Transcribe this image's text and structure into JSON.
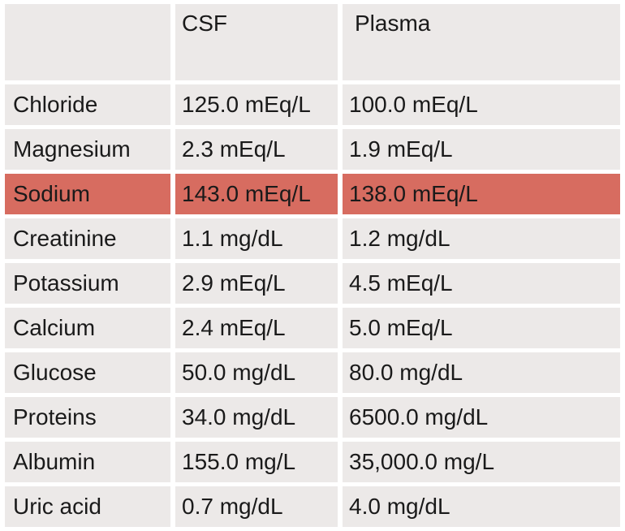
{
  "colors": {
    "cell_bg": "#ece9e8",
    "highlight_bg": "#d76c60",
    "gap_bg": "#ffffff",
    "text": "#1a1a1a"
  },
  "table": {
    "header": {
      "label": "",
      "csf": "CSF",
      "plasma": "Plasma"
    },
    "rows": [
      {
        "name": "Chloride",
        "csf": "125.0 mEq/L",
        "plasma": "100.0 mEq/L",
        "highlight": false
      },
      {
        "name": "Magnesium",
        "csf": "2.3 mEq/L",
        "plasma": "1.9 mEq/L",
        "highlight": false
      },
      {
        "name": "Sodium",
        "csf": "143.0 mEq/L",
        "plasma": "138.0 mEq/L",
        "highlight": true
      },
      {
        "name": "Creatinine",
        "csf": "1.1 mg/dL",
        "plasma": "1.2 mg/dL",
        "highlight": false
      },
      {
        "name": "Potassium",
        "csf": "2.9 mEq/L",
        "plasma": "4.5 mEq/L",
        "highlight": false
      },
      {
        "name": "Calcium",
        "csf": "2.4 mEq/L",
        "plasma": "5.0 mEq/L",
        "highlight": false
      },
      {
        "name": "Glucose",
        "csf": "50.0 mg/dL",
        "plasma": "80.0 mg/dL",
        "highlight": false
      },
      {
        "name": "Proteins",
        "csf": "34.0 mg/dL",
        "plasma": "6500.0 mg/dL",
        "highlight": false
      },
      {
        "name": "Albumin",
        "csf": "155.0 mg/L",
        "plasma": "35,000.0 mg/L",
        "highlight": false
      },
      {
        "name": "Uric acid",
        "csf": "0.7 mg/dL",
        "plasma": "4.0 mg/dL",
        "highlight": false
      }
    ]
  },
  "chart_data": {
    "type": "table",
    "title": "",
    "columns": [
      "",
      "CSF",
      "Plasma"
    ],
    "rows": [
      [
        "Chloride",
        "125.0 mEq/L",
        "100.0 mEq/L"
      ],
      [
        "Magnesium",
        "2.3 mEq/L",
        "1.9 mEq/L"
      ],
      [
        "Sodium",
        "143.0 mEq/L",
        "138.0 mEq/L"
      ],
      [
        "Creatinine",
        "1.1 mg/dL",
        "1.2 mg/dL"
      ],
      [
        "Potassium",
        "2.9 mEq/L",
        "4.5 mEq/L"
      ],
      [
        "Calcium",
        "2.4 mEq/L",
        "5.0 mEq/L"
      ],
      [
        "Glucose",
        "50.0 mg/dL",
        "80.0 mg/dL"
      ],
      [
        "Proteins",
        "34.0 mg/dL",
        "6500.0 mg/dL"
      ],
      [
        "Albumin",
        "155.0 mg/L",
        "35,000.0 mg/L"
      ],
      [
        "Uric acid",
        "0.7 mg/dL",
        "4.0 mg/dL"
      ]
    ],
    "highlighted_row": "Sodium",
    "highlight_color": "#d76c60",
    "numeric": {
      "csf_values": [
        125.0,
        2.3,
        143.0,
        1.1,
        2.9,
        2.4,
        50.0,
        34.0,
        155.0,
        0.7
      ],
      "plasma_values": [
        100.0,
        1.9,
        138.0,
        1.2,
        4.5,
        5.0,
        80.0,
        6500.0,
        35000.0,
        4.0
      ],
      "units": [
        "mEq/L",
        "mEq/L",
        "mEq/L",
        "mg/dL",
        "mEq/L",
        "mEq/L",
        "mg/dL",
        "mg/dL",
        "mg/L",
        "mg/dL"
      ]
    }
  }
}
